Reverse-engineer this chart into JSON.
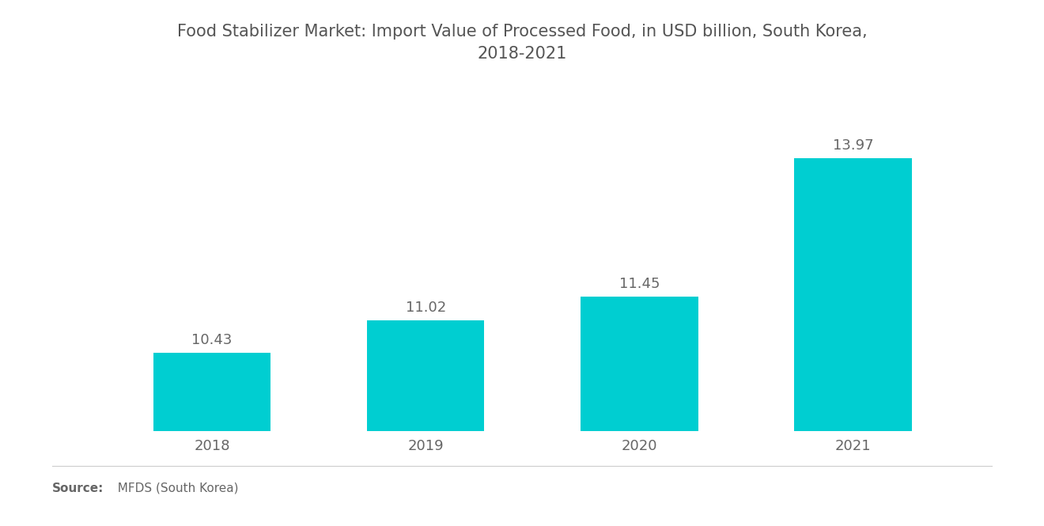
{
  "title": "Food Stabilizer Market: Import Value of Processed Food, in USD billion, South Korea,\n2018-2021",
  "categories": [
    "2018",
    "2019",
    "2020",
    "2021"
  ],
  "values": [
    10.43,
    11.02,
    11.45,
    13.97
  ],
  "bar_color": "#00CED1",
  "background_color": "#ffffff",
  "label_color": "#666666",
  "title_color": "#555555",
  "source_label_bold": "Source:",
  "source_label_rest": "  MFDS (South Korea)",
  "ylim": [
    9.0,
    15.5
  ],
  "bar_width": 0.55,
  "title_fontsize": 15,
  "label_fontsize": 13,
  "tick_fontsize": 13,
  "source_fontsize": 11
}
